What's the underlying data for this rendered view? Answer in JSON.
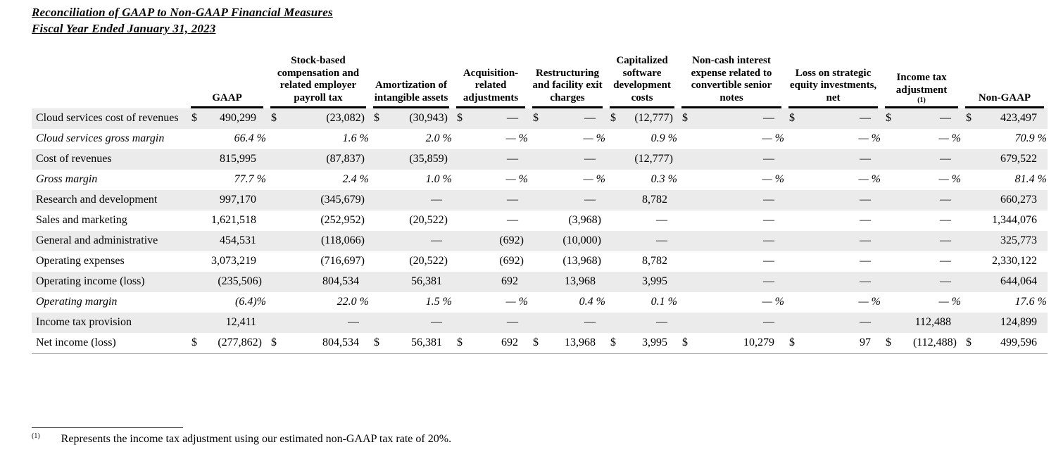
{
  "title": {
    "line1": "Reconciliation of GAAP to Non-GAAP Financial Measures",
    "line2": "Fiscal Year Ended January 31, 2023"
  },
  "table": {
    "shading_color": "#ebebeb",
    "row_label_header": "",
    "columns": [
      {
        "label": "GAAP",
        "superscript": ""
      },
      {
        "label": "Stock-based compensation and related employer payroll tax",
        "superscript": ""
      },
      {
        "label": "Amortization of intangible assets",
        "superscript": ""
      },
      {
        "label": "Acquisition-related adjustments",
        "superscript": ""
      },
      {
        "label": "Restructuring and facility exit charges",
        "superscript": ""
      },
      {
        "label": "Capitalized software development costs",
        "superscript": ""
      },
      {
        "label": "Non-cash interest expense related to convertible senior notes",
        "superscript": ""
      },
      {
        "label": "Loss on strategic equity investments, net",
        "superscript": ""
      },
      {
        "label": "Income tax adjustment",
        "superscript": "(1)"
      },
      {
        "label": "Non-GAAP",
        "superscript": ""
      }
    ],
    "rows": [
      {
        "label": "Cloud services cost of revenues",
        "italic": false,
        "shaded": true,
        "dollar": true,
        "values": [
          "490,299",
          "(23,082)",
          "(30,943)",
          "—",
          "—",
          "(12,777)",
          "—",
          "—",
          "—",
          "423,497"
        ]
      },
      {
        "label": "Cloud services gross margin",
        "italic": true,
        "shaded": false,
        "dollar": false,
        "values": [
          "66.4 %",
          "1.6 %",
          "2.0 %",
          "— %",
          "— %",
          "0.9 %",
          "— %",
          "— %",
          "— %",
          "70.9 %"
        ]
      },
      {
        "label": "Cost of revenues",
        "italic": false,
        "shaded": true,
        "dollar": false,
        "values": [
          "815,995",
          "(87,837)",
          "(35,859)",
          "—",
          "—",
          "(12,777)",
          "—",
          "—",
          "—",
          "679,522"
        ]
      },
      {
        "label": "Gross margin",
        "italic": true,
        "shaded": false,
        "dollar": false,
        "values": [
          "77.7 %",
          "2.4 %",
          "1.0 %",
          "— %",
          "— %",
          "0.3 %",
          "— %",
          "— %",
          "— %",
          "81.4 %"
        ]
      },
      {
        "label": "Research and development",
        "italic": false,
        "shaded": true,
        "dollar": false,
        "values": [
          "997,170",
          "(345,679)",
          "—",
          "—",
          "—",
          "8,782",
          "—",
          "—",
          "—",
          "660,273"
        ]
      },
      {
        "label": "Sales and marketing",
        "italic": false,
        "shaded": false,
        "dollar": false,
        "values": [
          "1,621,518",
          "(252,952)",
          "(20,522)",
          "—",
          "(3,968)",
          "—",
          "—",
          "—",
          "—",
          "1,344,076"
        ]
      },
      {
        "label": "General and administrative",
        "italic": false,
        "shaded": true,
        "dollar": false,
        "values": [
          "454,531",
          "(118,066)",
          "—",
          "(692)",
          "(10,000)",
          "—",
          "—",
          "—",
          "—",
          "325,773"
        ]
      },
      {
        "label": "Operating expenses",
        "italic": false,
        "shaded": false,
        "dollar": false,
        "values": [
          "3,073,219",
          "(716,697)",
          "(20,522)",
          "(692)",
          "(13,968)",
          "8,782",
          "—",
          "—",
          "—",
          "2,330,122"
        ]
      },
      {
        "label": "Operating income (loss)",
        "italic": false,
        "shaded": true,
        "dollar": false,
        "values": [
          "(235,506)",
          "804,534",
          "56,381",
          "692",
          "13,968",
          "3,995",
          "—",
          "—",
          "—",
          "644,064"
        ]
      },
      {
        "label": "Operating margin",
        "italic": true,
        "shaded": false,
        "dollar": false,
        "values": [
          "(6.4)%",
          "22.0 %",
          "1.5 %",
          "— %",
          "0.4 %",
          "0.1 %",
          "— %",
          "— %",
          "— %",
          "17.6 %"
        ]
      },
      {
        "label": "Income tax provision",
        "italic": false,
        "shaded": true,
        "dollar": false,
        "values": [
          "12,411",
          "—",
          "—",
          "—",
          "—",
          "—",
          "—",
          "—",
          "112,488",
          "124,899"
        ]
      },
      {
        "label": "Net income (loss)",
        "italic": false,
        "shaded": false,
        "dollar": true,
        "values": [
          "(277,862)",
          "804,534",
          "56,381",
          "692",
          "13,968",
          "3,995",
          "10,279",
          "97",
          "(112,488)",
          "499,596"
        ]
      }
    ],
    "currency_symbol": "$"
  },
  "footnote": {
    "marker": "(1)",
    "text": "Represents the income tax adjustment using our estimated non-GAAP tax rate of 20%."
  }
}
